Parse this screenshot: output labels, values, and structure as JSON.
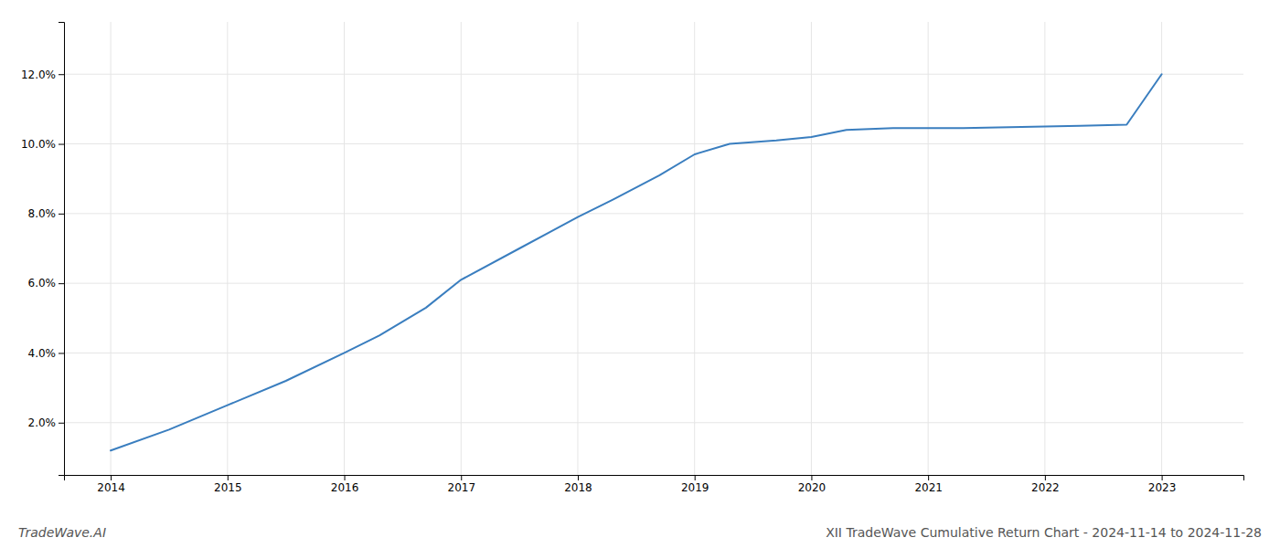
{
  "chart_data": {
    "type": "line",
    "title": "XII TradeWave Cumulative Return Chart - 2024-11-14 to 2024-11-28",
    "annotations": [
      "TradeWave.AI"
    ],
    "x": [
      2014.0,
      2014.5,
      2015.0,
      2015.5,
      2016.0,
      2016.3,
      2016.7,
      2017.0,
      2017.5,
      2018.0,
      2018.3,
      2018.7,
      2019.0,
      2019.3,
      2019.7,
      2020.0,
      2020.3,
      2020.7,
      2021.0,
      2021.3,
      2021.7,
      2022.0,
      2022.3,
      2022.7,
      2023.0
    ],
    "values": [
      0.012,
      0.018,
      0.025,
      0.032,
      0.04,
      0.045,
      0.053,
      0.061,
      0.07,
      0.079,
      0.084,
      0.091,
      0.097,
      0.1,
      0.101,
      0.102,
      0.104,
      0.1045,
      0.1045,
      0.1045,
      0.1048,
      0.105,
      0.1052,
      0.1055,
      0.12
    ],
    "color": "#3a7ebf",
    "xlim": [
      2013.6,
      2023.7
    ],
    "ylim": [
      0.005,
      0.135
    ],
    "xticks": [
      2014,
      2015,
      2016,
      2017,
      2018,
      2019,
      2020,
      2021,
      2022,
      2023
    ],
    "yticks": [
      {
        "value": 0.02,
        "label": "2.0%"
      },
      {
        "value": 0.04,
        "label": "4.0%"
      },
      {
        "value": 0.06,
        "label": "6.0%"
      },
      {
        "value": 0.08,
        "label": "8.0%"
      },
      {
        "value": 0.1,
        "label": "10.0%"
      },
      {
        "value": 0.12,
        "label": "12.0%"
      }
    ],
    "grid": true
  }
}
